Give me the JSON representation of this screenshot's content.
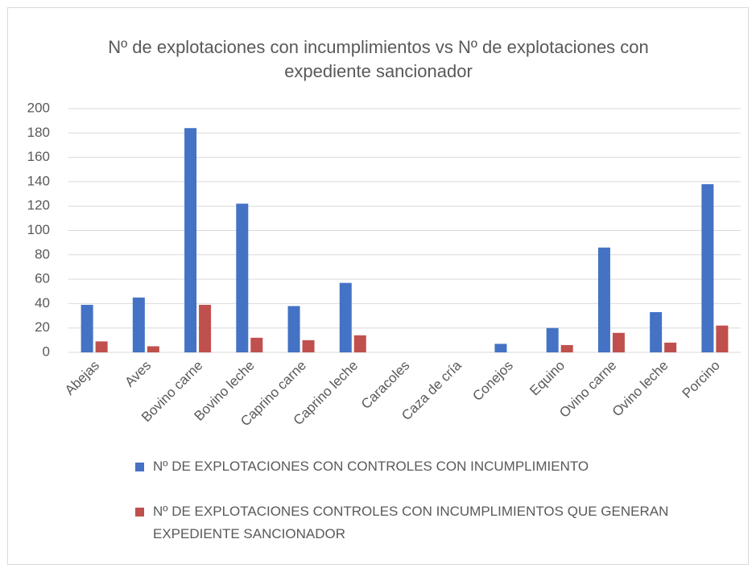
{
  "chart_data": {
    "type": "bar",
    "title": "Nº de explotaciones con incumplimientos vs Nº de explotaciones con expediente sancionador",
    "categories": [
      "Abejas",
      "Aves",
      "Bovino carne",
      "Bovino leche",
      "Caprino carne",
      "Caprino leche",
      "Caracoles",
      "Caza de cría",
      "Conejos",
      "Equino",
      "Ovino carne",
      "Ovino leche",
      "Porcino"
    ],
    "series": [
      {
        "name": "Nº DE EXPLOTACIONES CON CONTROLES CON INCUMPLIMIENTO",
        "color": "#4472c4",
        "values": [
          39,
          45,
          184,
          122,
          38,
          57,
          0,
          0,
          7,
          20,
          86,
          33,
          138
        ]
      },
      {
        "name": "Nº DE EXPLOTACIONES CONTROLES CON INCUMPLIMIENTOS QUE GENERAN EXPEDIENTE SANCIONADOR",
        "color": "#c0504d",
        "values": [
          9,
          5,
          39,
          12,
          10,
          14,
          0,
          0,
          0,
          6,
          16,
          8,
          22
        ]
      }
    ],
    "ylim": [
      0,
      200
    ],
    "yticks": [
      0,
      20,
      40,
      60,
      80,
      100,
      120,
      140,
      160,
      180,
      200
    ],
    "grid": true
  }
}
